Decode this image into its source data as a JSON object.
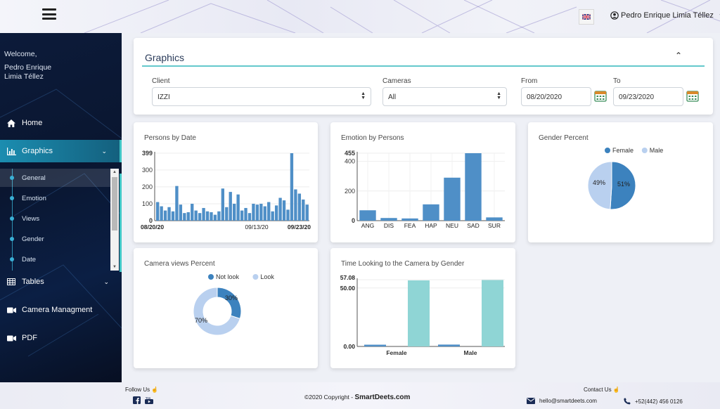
{
  "header": {
    "user_name": "Pedro Enrique Limia Téllez",
    "flag_icon": "uk-flag-icon"
  },
  "sidebar": {
    "welcome": "Welcome,",
    "welcome_name": "Pedro Enrique Limia Téllez",
    "items": [
      {
        "label": "Home",
        "icon": "home-icon"
      },
      {
        "label": "Graphics",
        "icon": "bar-chart-icon"
      },
      {
        "label": "Tables",
        "icon": "table-icon"
      },
      {
        "label": "Camera Managment",
        "icon": "video-camera-icon"
      },
      {
        "label": "PDF",
        "icon": "video-camera-icon"
      }
    ],
    "graphics_sub": [
      "General",
      "Emotion",
      "Views",
      "Gender",
      "Date"
    ],
    "active_sub": "General"
  },
  "filters": {
    "title": "Graphics",
    "client_label": "Client",
    "client_value": "IZZI",
    "cameras_label": "Cameras",
    "cameras_value": "All",
    "from_label": "From",
    "from_value": "08/20/2020",
    "to_label": "To",
    "to_value": "09/23/2020"
  },
  "cards": {
    "persons_by_date": {
      "title": "Persons by Date",
      "chart_data": {
        "type": "bar",
        "x_labels": [
          "08/20/20",
          "09/13/20",
          "09/23/20"
        ],
        "y_ticks": [
          0,
          100,
          200,
          300,
          399
        ],
        "ymax": 399,
        "values": [
          110,
          85,
          60,
          80,
          55,
          205,
          95,
          45,
          50,
          100,
          60,
          45,
          75,
          55,
          50,
          35,
          55,
          190,
          80,
          170,
          100,
          155,
          60,
          75,
          45,
          100,
          95,
          100,
          85,
          110,
          55,
          90,
          135,
          120,
          65,
          399,
          185,
          160,
          125,
          95
        ]
      }
    },
    "emotion_by_persons": {
      "title": "Emotion by Persons",
      "chart_data": {
        "type": "bar",
        "categories": [
          "ANG",
          "DIS",
          "FEA",
          "HAP",
          "NEU",
          "SAD",
          "SUR"
        ],
        "values": [
          70,
          18,
          15,
          110,
          290,
          455,
          22
        ],
        "y_ticks": [
          0,
          200,
          400,
          455
        ],
        "ymax": 455
      }
    },
    "gender_percent": {
      "title": "Gender Percent",
      "chart_data": {
        "type": "pie",
        "series": [
          {
            "name": "Female",
            "value": 51,
            "color": "#3c82be"
          },
          {
            "name": "Male",
            "value": 49,
            "color": "#b9d0ef"
          }
        ]
      }
    },
    "camera_views": {
      "title": "Camera views Percent",
      "chart_data": {
        "type": "pie",
        "series": [
          {
            "name": "Not look",
            "value": 30,
            "color": "#3c82be"
          },
          {
            "name": "Look",
            "value": 70,
            "color": "#b9d0ef"
          }
        ]
      }
    },
    "time_looking": {
      "title": "Time Looking to the Camera by Gender",
      "chart_data": {
        "type": "bar",
        "categories": [
          "Female",
          "Male"
        ],
        "series": [
          {
            "values": [
              1.5,
              1.6
            ],
            "color": "#4f8fc7"
          },
          {
            "values": [
              56.5,
              56.8
            ],
            "color": "#8fd5d5"
          }
        ],
        "y_ticks": [
          0,
          50,
          57.08
        ],
        "y_tick_labels": [
          "0.00",
          "50.00",
          "57.08"
        ],
        "ymax": 57.08
      }
    }
  },
  "footer": {
    "follow": "Follow Us",
    "copyright": "©2020 Copyright - ",
    "brand": "SmartDeets.com",
    "contact": "Contact Us",
    "email": "hello@smartdeets.com",
    "phone": "+52(442) 456 0126"
  },
  "colors": {
    "accent": "#41c6c6",
    "bar": "#4f8fc7",
    "sidebar": "#0c1b3a"
  }
}
